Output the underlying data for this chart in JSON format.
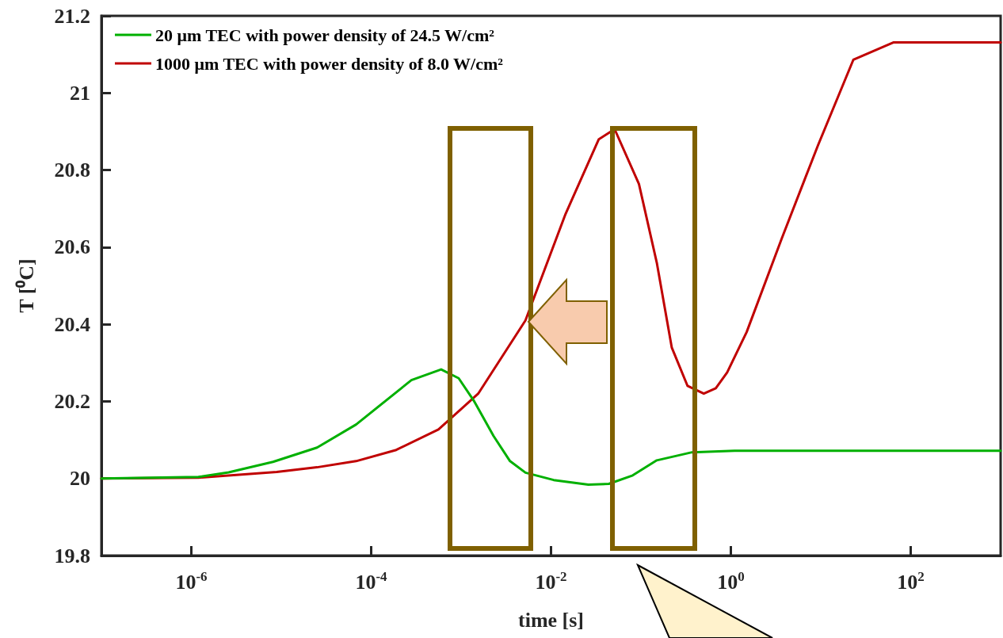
{
  "chart_data": {
    "type": "line",
    "xlabel": "time [s]",
    "ylabel": "T [⁰C]",
    "log": "x",
    "xlim": [
      1e-07,
      1000
    ],
    "ylim": [
      19.8,
      21.2
    ],
    "xticks": [
      {
        "value": 1e-06,
        "label": "10$^{-6}$"
      },
      {
        "value": 0.0001,
        "label": "10$^{-4}$"
      },
      {
        "value": 0.01,
        "label": "10$^{-2}$"
      },
      {
        "value": 1,
        "label": "10$^{0}$"
      },
      {
        "value": 100,
        "label": "10$^{2}$"
      }
    ],
    "yticks": [
      19.8,
      20,
      20.2,
      20.4,
      20.6,
      20.8,
      21,
      21.2
    ],
    "grid": false,
    "legend": "top left",
    "marker": "none",
    "line_style": "solid",
    "series": [
      {
        "name": "20 μm TEC with power density of 24.5 W/cm²",
        "color": "#00b000",
        "x": [
          1e-07,
          1.2e-06,
          2.6e-06,
          8.1e-06,
          2.5e-05,
          6.8e-05,
          0.00028,
          0.0006,
          0.00094,
          0.0014,
          0.0023,
          0.0035,
          0.0052,
          0.0107,
          0.026,
          0.044,
          0.081,
          0.15,
          0.37,
          1.1,
          1000
        ],
        "values": [
          20.0,
          20.004,
          20.016,
          20.043,
          20.08,
          20.14,
          20.255,
          20.283,
          20.26,
          20.2,
          20.11,
          20.045,
          20.015,
          19.996,
          19.984,
          19.986,
          20.008,
          20.047,
          20.068,
          20.072,
          20.072
        ]
      },
      {
        "name": "1000 μm TEC with power density of 8.0 W/cm²",
        "color": "#c00000",
        "x": [
          1e-07,
          1.2e-06,
          8.9e-06,
          2.5e-05,
          6.8e-05,
          0.00019,
          0.00056,
          0.00155,
          0.0052,
          0.0145,
          0.034,
          0.051,
          0.095,
          0.15,
          0.22,
          0.33,
          0.5,
          0.68,
          0.91,
          1.5,
          3.7,
          9.3,
          23,
          64,
          1000
        ],
        "values": [
          20.0,
          20.002,
          20.017,
          20.029,
          20.045,
          20.074,
          20.127,
          20.22,
          20.41,
          20.686,
          20.88,
          20.906,
          20.764,
          20.56,
          20.34,
          20.24,
          20.22,
          20.234,
          20.275,
          20.38,
          20.624,
          20.864,
          21.086,
          21.131,
          21.131
        ]
      }
    ]
  }
}
